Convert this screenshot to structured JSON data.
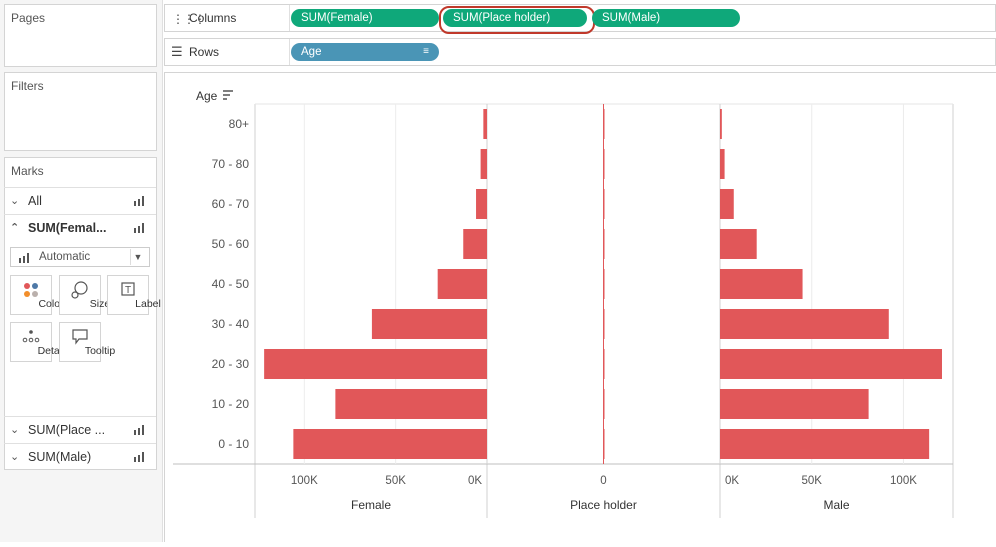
{
  "pages": {
    "title": "Pages"
  },
  "filters": {
    "title": "Filters"
  },
  "marks": {
    "title": "Marks",
    "cards": [
      {
        "label": "All",
        "expanded": false
      },
      {
        "label": "SUM(Femal...",
        "expanded": true
      },
      {
        "label": "SUM(Place ...",
        "expanded": false
      },
      {
        "label": "SUM(Male)",
        "expanded": false
      }
    ],
    "mark_type": "Automatic",
    "buttons": [
      {
        "label": "Color",
        "icon": "color-dots-icon"
      },
      {
        "label": "Size",
        "icon": "size-bubble-icon"
      },
      {
        "label": "Label",
        "icon": "label-t-icon"
      },
      {
        "label": "Detail",
        "icon": "detail-dots-icon"
      },
      {
        "label": "Tooltip",
        "icon": "tooltip-bubble-icon"
      }
    ]
  },
  "columns_shelf": {
    "label": "Columns",
    "pills": [
      "SUM(Female)",
      "SUM(Place holder)",
      "SUM(Male)"
    ],
    "selected_pill_index": 1
  },
  "rows_shelf": {
    "label": "Rows",
    "pills": [
      "Age"
    ]
  },
  "chart_data": {
    "type": "bar",
    "orientation": "horizontal",
    "row_header": "Age",
    "categories": [
      "80+",
      "70 - 80",
      "60 - 70",
      "50 - 60",
      "40 - 50",
      "30 - 40",
      "20 - 30",
      "10 - 20",
      "0 - 10"
    ],
    "panes": [
      {
        "name": "Female",
        "reversed": true,
        "ticks": [
          "100K",
          "50K",
          "0K"
        ],
        "tick_values": [
          100000,
          50000,
          0
        ],
        "xlim": [
          0,
          127000
        ],
        "values": [
          2000,
          3500,
          6000,
          13000,
          27000,
          63000,
          122000,
          83000,
          106000
        ]
      },
      {
        "name": "Place holder",
        "reversed": false,
        "ticks": [
          "0"
        ],
        "tick_values": [
          0
        ],
        "xlim": [
          -1,
          1
        ],
        "values": [
          0,
          0,
          0,
          0,
          0,
          0,
          0,
          0,
          0
        ]
      },
      {
        "name": "Male",
        "reversed": false,
        "ticks": [
          "0K",
          "50K",
          "100K"
        ],
        "tick_values": [
          0,
          50000,
          100000
        ],
        "xlim": [
          0,
          127000
        ],
        "values": [
          1000,
          2500,
          7500,
          20000,
          45000,
          92000,
          121000,
          81000,
          114000
        ]
      }
    ],
    "bar_color": "#e15759"
  }
}
